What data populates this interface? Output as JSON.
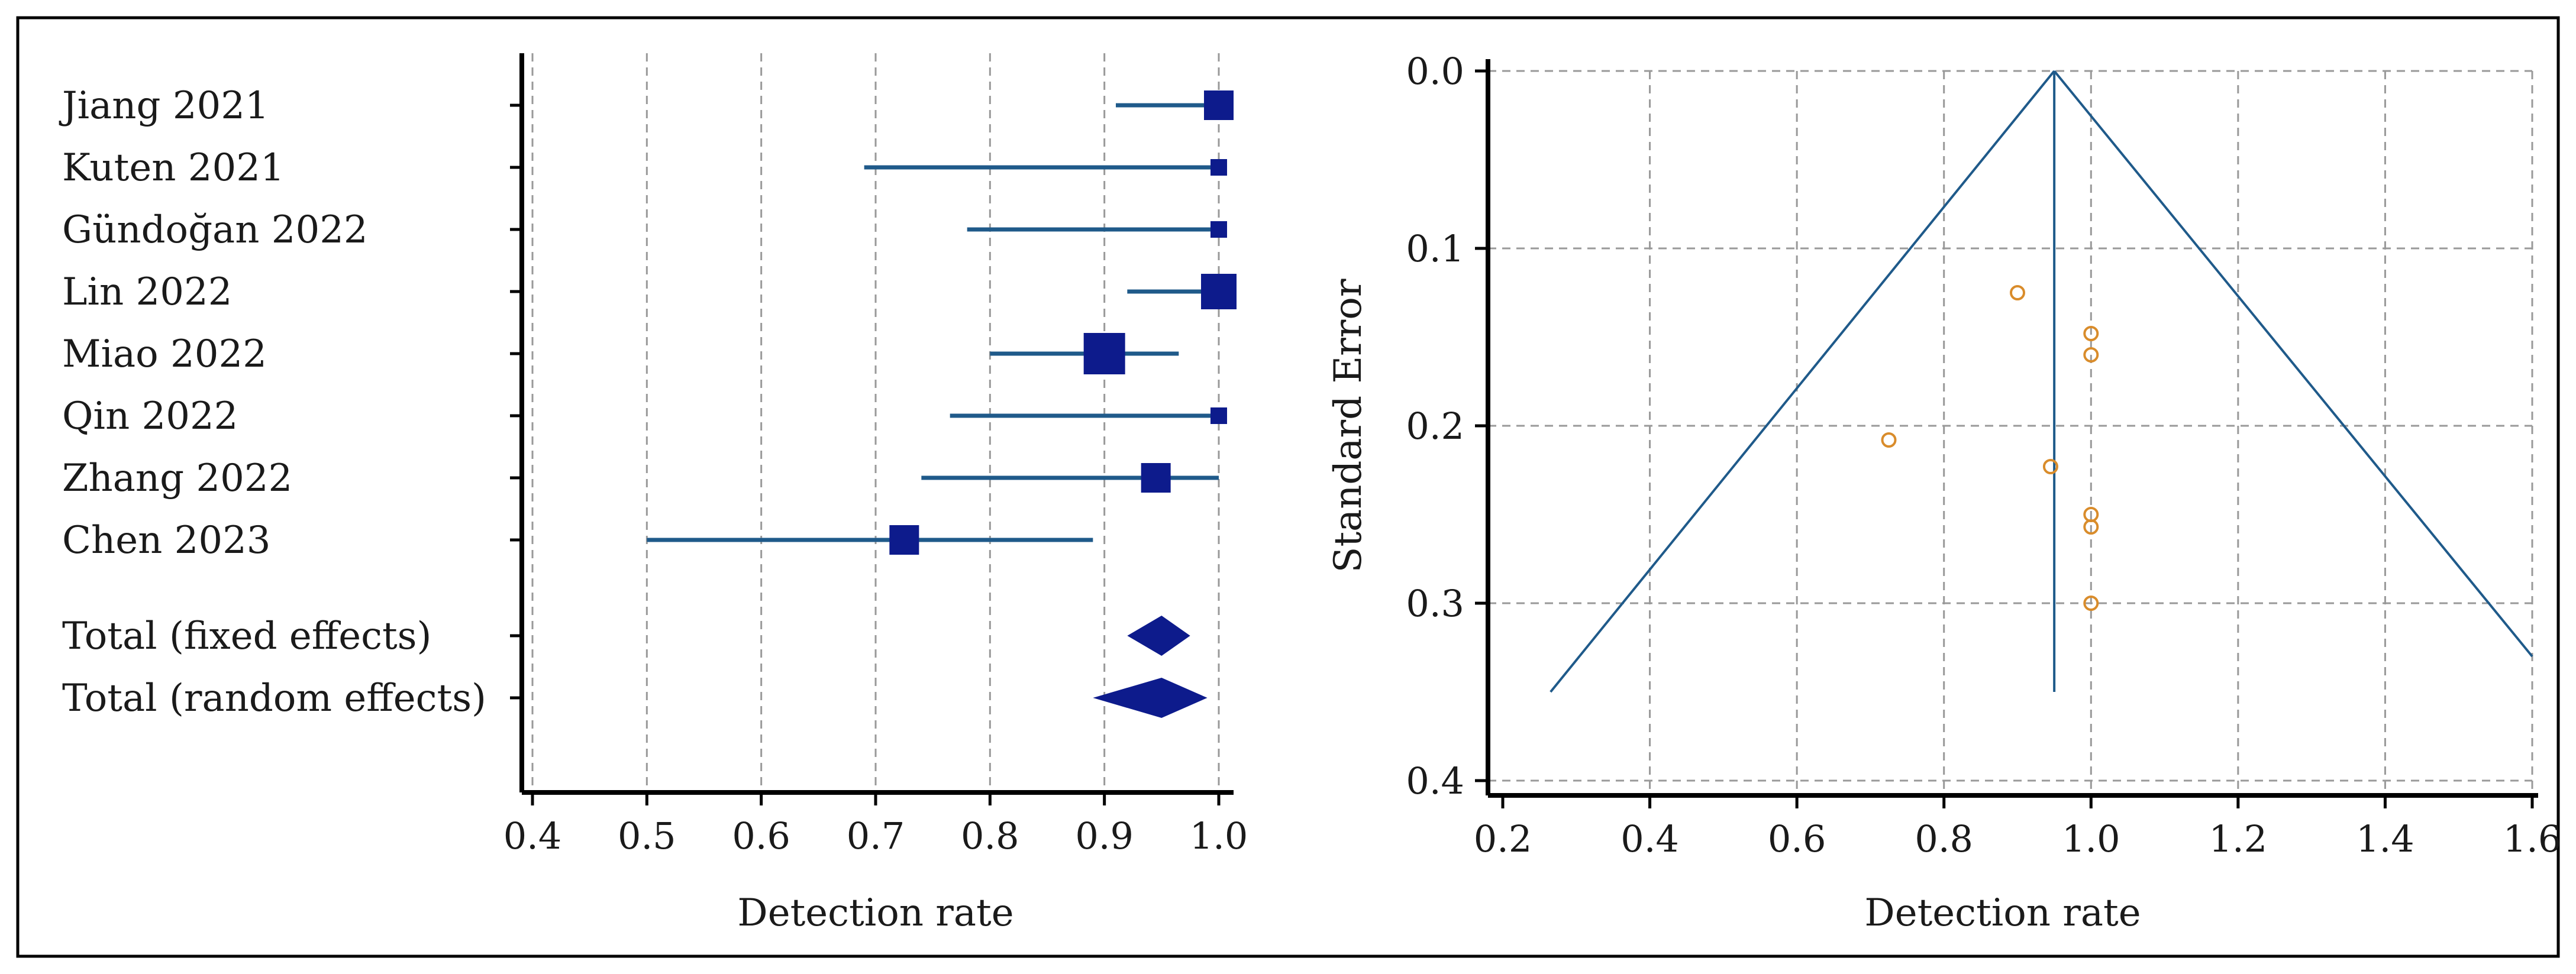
{
  "chart_data": [
    {
      "type": "forest",
      "xlabel": "Detection rate",
      "xlim": [
        0.4,
        1.0
      ],
      "xticks": [
        0.4,
        0.5,
        0.6,
        0.7,
        0.8,
        0.9,
        1.0
      ],
      "xtick_labels": [
        "0.4",
        "0.5",
        "0.6",
        "0.7",
        "0.8",
        "0.9",
        "1.0"
      ],
      "grid": "vertical-dashed",
      "studies": [
        {
          "label": "Jiang 2021",
          "estimate": 1.0,
          "ci_low": 0.91,
          "ci_high": 1.0,
          "weight": "medium"
        },
        {
          "label": "Kuten 2021",
          "estimate": 1.0,
          "ci_low": 0.69,
          "ci_high": 1.0,
          "weight": "small"
        },
        {
          "label": "Gündoğan 2022",
          "estimate": 1.0,
          "ci_low": 0.78,
          "ci_high": 1.0,
          "weight": "small"
        },
        {
          "label": "Lin 2022",
          "estimate": 1.0,
          "ci_low": 0.92,
          "ci_high": 1.0,
          "weight": "large"
        },
        {
          "label": "Miao 2022",
          "estimate": 0.9,
          "ci_low": 0.8,
          "ci_high": 0.965,
          "weight": "largest"
        },
        {
          "label": "Qin 2022",
          "estimate": 1.0,
          "ci_low": 0.765,
          "ci_high": 1.0,
          "weight": "small"
        },
        {
          "label": "Zhang 2022",
          "estimate": 0.945,
          "ci_low": 0.74,
          "ci_high": 1.0,
          "weight": "medium"
        },
        {
          "label": "Chen 2023",
          "estimate": 0.725,
          "ci_low": 0.5,
          "ci_high": 0.89,
          "weight": "medium"
        }
      ],
      "totals": [
        {
          "label": "Total (fixed effects)",
          "estimate": 0.95,
          "ci_low": 0.92,
          "ci_high": 0.975
        },
        {
          "label": "Total (random effects)",
          "estimate": 0.95,
          "ci_low": 0.89,
          "ci_high": 0.99
        }
      ],
      "colors": {
        "line": "#1f5a8a",
        "square": "#0d1b8c",
        "axis": "#000000",
        "grid": "#999999"
      }
    },
    {
      "type": "funnel",
      "xlabel": "Detection rate",
      "ylabel": "Standard Error",
      "xlim": [
        0.2,
        1.6
      ],
      "ylim": [
        0.0,
        0.4
      ],
      "y_inverted": true,
      "xticks": [
        0.2,
        0.4,
        0.6,
        0.8,
        1.0,
        1.2,
        1.4,
        1.6
      ],
      "xtick_labels": [
        "0.2",
        "0.4",
        "0.6",
        "0.8",
        "1.0",
        "1.2",
        "1.4",
        "1.6"
      ],
      "yticks": [
        0.0,
        0.1,
        0.2,
        0.3,
        0.4
      ],
      "ytick_labels": [
        "0.0",
        "0.1",
        "0.2",
        "0.3",
        "0.4"
      ],
      "grid": "both-dashed",
      "pooled_estimate": 0.95,
      "funnel_apex": {
        "x": 0.95,
        "se": 0.0
      },
      "funnel_left": {
        "x": 0.265,
        "se": 0.35
      },
      "funnel_right": {
        "x": 1.6,
        "se": 0.33
      },
      "center_line_end_se": 0.35,
      "points": [
        {
          "x": 0.9,
          "se": 0.125
        },
        {
          "x": 1.0,
          "se": 0.148
        },
        {
          "x": 1.0,
          "se": 0.16
        },
        {
          "x": 0.725,
          "se": 0.208
        },
        {
          "x": 0.945,
          "se": 0.223
        },
        {
          "x": 1.0,
          "se": 0.25
        },
        {
          "x": 1.0,
          "se": 0.257
        },
        {
          "x": 1.0,
          "se": 0.3
        }
      ],
      "colors": {
        "funnel": "#1f5a8a",
        "points": "#d98c2b",
        "axis": "#000000",
        "grid": "#999999"
      }
    }
  ]
}
